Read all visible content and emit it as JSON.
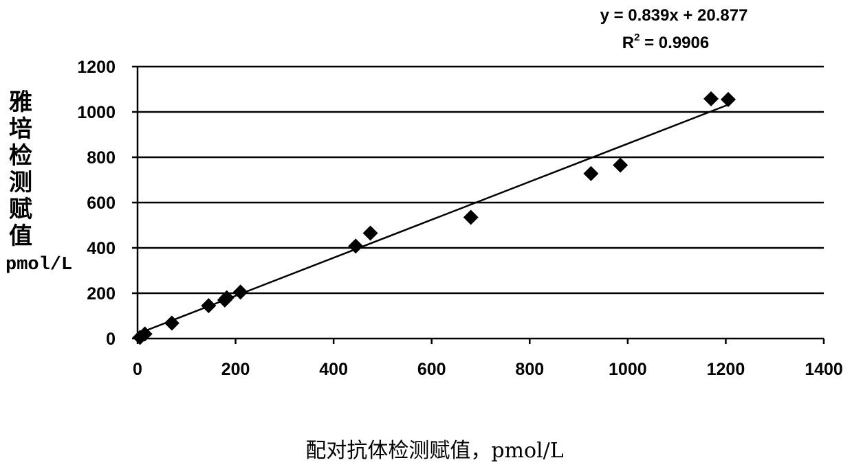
{
  "chart_data": {
    "type": "scatter",
    "xlabel": "配对抗体检测赋值，pmol/L",
    "ylabel": "雅培检测赋值",
    "ylabel_unit": "pmol/L",
    "xlim": [
      0,
      1400
    ],
    "ylim": [
      0,
      1200
    ],
    "x_ticks": [
      0,
      200,
      400,
      600,
      800,
      1000,
      1200,
      1400
    ],
    "y_ticks": [
      0,
      200,
      400,
      600,
      800,
      1000,
      1200
    ],
    "grid": "horizontal",
    "marker": "diamond",
    "points": [
      {
        "x": 5,
        "y": 5
      },
      {
        "x": 15,
        "y": 20
      },
      {
        "x": 70,
        "y": 68
      },
      {
        "x": 145,
        "y": 145
      },
      {
        "x": 178,
        "y": 170
      },
      {
        "x": 182,
        "y": 180
      },
      {
        "x": 210,
        "y": 205
      },
      {
        "x": 445,
        "y": 408
      },
      {
        "x": 475,
        "y": 465
      },
      {
        "x": 680,
        "y": 535
      },
      {
        "x": 925,
        "y": 728
      },
      {
        "x": 985,
        "y": 765
      },
      {
        "x": 1170,
        "y": 1058
      },
      {
        "x": 1205,
        "y": 1055
      }
    ],
    "trendline": {
      "slope": 0.839,
      "intercept": 20.877,
      "x_range": [
        0,
        1205
      ],
      "equation": "y = 0.839x + 20.877",
      "r2_label": "R",
      "r2_sup": "2",
      "r2_value": " = 0.9906"
    }
  }
}
